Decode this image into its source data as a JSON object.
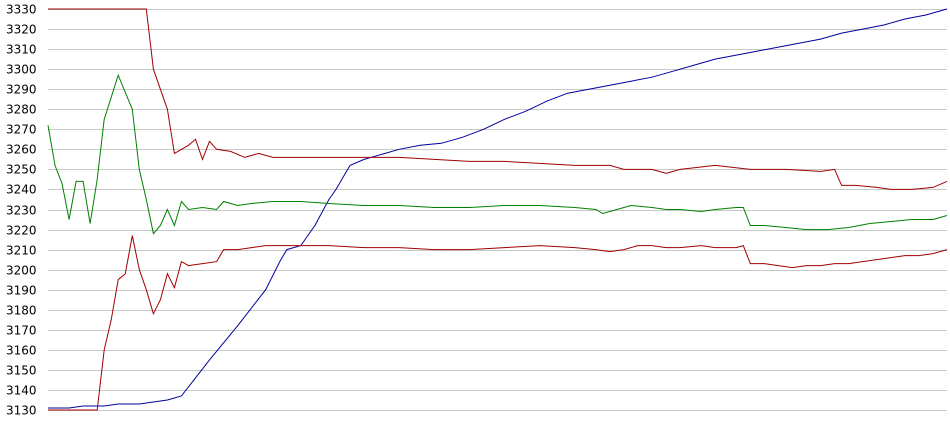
{
  "chart_data": {
    "type": "line",
    "title": "",
    "xlabel": "",
    "ylabel": "",
    "ylim": [
      3130,
      3330
    ],
    "yticks": [
      3330,
      3320,
      3310,
      3300,
      3290,
      3280,
      3270,
      3260,
      3250,
      3240,
      3230,
      3220,
      3210,
      3200,
      3190,
      3180,
      3170,
      3160,
      3150,
      3140,
      3130
    ],
    "grid": true,
    "legend": "none",
    "x_count": 129,
    "series": [
      {
        "color": "#0000a0",
        "points": [
          [
            0,
            3131
          ],
          [
            3,
            3131
          ],
          [
            5,
            3132
          ],
          [
            8,
            3132
          ],
          [
            10,
            3133
          ],
          [
            13,
            3133
          ],
          [
            15,
            3134
          ],
          [
            17,
            3135
          ],
          [
            19,
            3137
          ],
          [
            23,
            3155
          ],
          [
            27,
            3172
          ],
          [
            31,
            3190
          ],
          [
            33,
            3204
          ],
          [
            34,
            3210
          ],
          [
            36,
            3212
          ],
          [
            38,
            3222
          ],
          [
            40,
            3235
          ],
          [
            41,
            3240
          ],
          [
            43,
            3252
          ],
          [
            45,
            3255
          ],
          [
            48,
            3258
          ],
          [
            50,
            3260
          ],
          [
            53,
            3262
          ],
          [
            56,
            3263
          ],
          [
            59,
            3266
          ],
          [
            62,
            3270
          ],
          [
            65,
            3275
          ],
          [
            68,
            3279
          ],
          [
            71,
            3284
          ],
          [
            74,
            3288
          ],
          [
            77,
            3290
          ],
          [
            80,
            3292
          ],
          [
            83,
            3294
          ],
          [
            86,
            3296
          ],
          [
            89,
            3299
          ],
          [
            92,
            3302
          ],
          [
            95,
            3305
          ],
          [
            98,
            3307
          ],
          [
            101,
            3309
          ],
          [
            104,
            3311
          ],
          [
            107,
            3313
          ],
          [
            110,
            3315
          ],
          [
            113,
            3318
          ],
          [
            116,
            3320
          ],
          [
            119,
            3322
          ],
          [
            122,
            3325
          ],
          [
            125,
            3327
          ],
          [
            128,
            3330
          ]
        ]
      },
      {
        "color": "#a00000",
        "points": [
          [
            0,
            3330
          ],
          [
            8,
            3330
          ],
          [
            12,
            3330
          ],
          [
            14,
            3330
          ],
          [
            15,
            3300
          ],
          [
            17,
            3280
          ],
          [
            18,
            3258
          ],
          [
            20,
            3262
          ],
          [
            21,
            3265
          ],
          [
            22,
            3255
          ],
          [
            23,
            3264
          ],
          [
            24,
            3260
          ],
          [
            26,
            3259
          ],
          [
            28,
            3256
          ],
          [
            30,
            3258
          ],
          [
            32,
            3256
          ],
          [
            35,
            3256
          ],
          [
            40,
            3256
          ],
          [
            45,
            3256
          ],
          [
            50,
            3256
          ],
          [
            55,
            3255
          ],
          [
            60,
            3254
          ],
          [
            65,
            3254
          ],
          [
            70,
            3253
          ],
          [
            75,
            3252
          ],
          [
            80,
            3252
          ],
          [
            82,
            3250
          ],
          [
            84,
            3250
          ],
          [
            86,
            3250
          ],
          [
            88,
            3248
          ],
          [
            90,
            3250
          ],
          [
            95,
            3252
          ],
          [
            100,
            3250
          ],
          [
            105,
            3250
          ],
          [
            110,
            3249
          ],
          [
            112,
            3250
          ],
          [
            113,
            3242
          ],
          [
            115,
            3242
          ],
          [
            118,
            3241
          ],
          [
            120,
            3240
          ],
          [
            123,
            3240
          ],
          [
            126,
            3241
          ],
          [
            128,
            3244
          ]
        ]
      },
      {
        "color": "#008000",
        "points": [
          [
            0,
            3272
          ],
          [
            1,
            3252
          ],
          [
            2,
            3243
          ],
          [
            3,
            3225
          ],
          [
            4,
            3244
          ],
          [
            5,
            3244
          ],
          [
            6,
            3223
          ],
          [
            7,
            3245
          ],
          [
            8,
            3275
          ],
          [
            10,
            3297
          ],
          [
            12,
            3280
          ],
          [
            13,
            3250
          ],
          [
            14,
            3235
          ],
          [
            15,
            3218
          ],
          [
            16,
            3222
          ],
          [
            17,
            3230
          ],
          [
            18,
            3222
          ],
          [
            19,
            3234
          ],
          [
            20,
            3230
          ],
          [
            22,
            3231
          ],
          [
            24,
            3230
          ],
          [
            25,
            3234
          ],
          [
            27,
            3232
          ],
          [
            29,
            3233
          ],
          [
            32,
            3234
          ],
          [
            36,
            3234
          ],
          [
            40,
            3233
          ],
          [
            45,
            3232
          ],
          [
            50,
            3232
          ],
          [
            55,
            3231
          ],
          [
            60,
            3231
          ],
          [
            65,
            3232
          ],
          [
            70,
            3232
          ],
          [
            75,
            3231
          ],
          [
            78,
            3230
          ],
          [
            79,
            3228
          ],
          [
            81,
            3230
          ],
          [
            83,
            3232
          ],
          [
            86,
            3231
          ],
          [
            88,
            3230
          ],
          [
            90,
            3230
          ],
          [
            93,
            3229
          ],
          [
            95,
            3230
          ],
          [
            98,
            3231
          ],
          [
            99,
            3231
          ],
          [
            100,
            3222
          ],
          [
            102,
            3222
          ],
          [
            105,
            3221
          ],
          [
            108,
            3220
          ],
          [
            111,
            3220
          ],
          [
            114,
            3221
          ],
          [
            117,
            3223
          ],
          [
            120,
            3224
          ],
          [
            123,
            3225
          ],
          [
            126,
            3225
          ],
          [
            128,
            3227
          ]
        ]
      },
      {
        "color": "#a00000",
        "points": [
          [
            0,
            3130
          ],
          [
            5,
            3130
          ],
          [
            7,
            3130
          ],
          [
            8,
            3160
          ],
          [
            9,
            3175
          ],
          [
            10,
            3195
          ],
          [
            11,
            3198
          ],
          [
            12,
            3217
          ],
          [
            13,
            3200
          ],
          [
            14,
            3190
          ],
          [
            15,
            3178
          ],
          [
            16,
            3185
          ],
          [
            17,
            3198
          ],
          [
            18,
            3191
          ],
          [
            19,
            3204
          ],
          [
            20,
            3202
          ],
          [
            22,
            3203
          ],
          [
            24,
            3204
          ],
          [
            25,
            3210
          ],
          [
            27,
            3210
          ],
          [
            29,
            3211
          ],
          [
            31,
            3212
          ],
          [
            35,
            3212
          ],
          [
            40,
            3212
          ],
          [
            45,
            3211
          ],
          [
            50,
            3211
          ],
          [
            55,
            3210
          ],
          [
            60,
            3210
          ],
          [
            65,
            3211
          ],
          [
            70,
            3212
          ],
          [
            75,
            3211
          ],
          [
            78,
            3210
          ],
          [
            80,
            3209
          ],
          [
            82,
            3210
          ],
          [
            84,
            3212
          ],
          [
            86,
            3212
          ],
          [
            88,
            3211
          ],
          [
            90,
            3211
          ],
          [
            93,
            3212
          ],
          [
            95,
            3211
          ],
          [
            98,
            3211
          ],
          [
            99,
            3212
          ],
          [
            100,
            3203
          ],
          [
            102,
            3203
          ],
          [
            104,
            3202
          ],
          [
            106,
            3201
          ],
          [
            108,
            3202
          ],
          [
            110,
            3202
          ],
          [
            112,
            3203
          ],
          [
            114,
            3203
          ],
          [
            116,
            3204
          ],
          [
            118,
            3205
          ],
          [
            120,
            3206
          ],
          [
            122,
            3207
          ],
          [
            124,
            3207
          ],
          [
            126,
            3208
          ],
          [
            128,
            3210
          ]
        ]
      }
    ]
  }
}
